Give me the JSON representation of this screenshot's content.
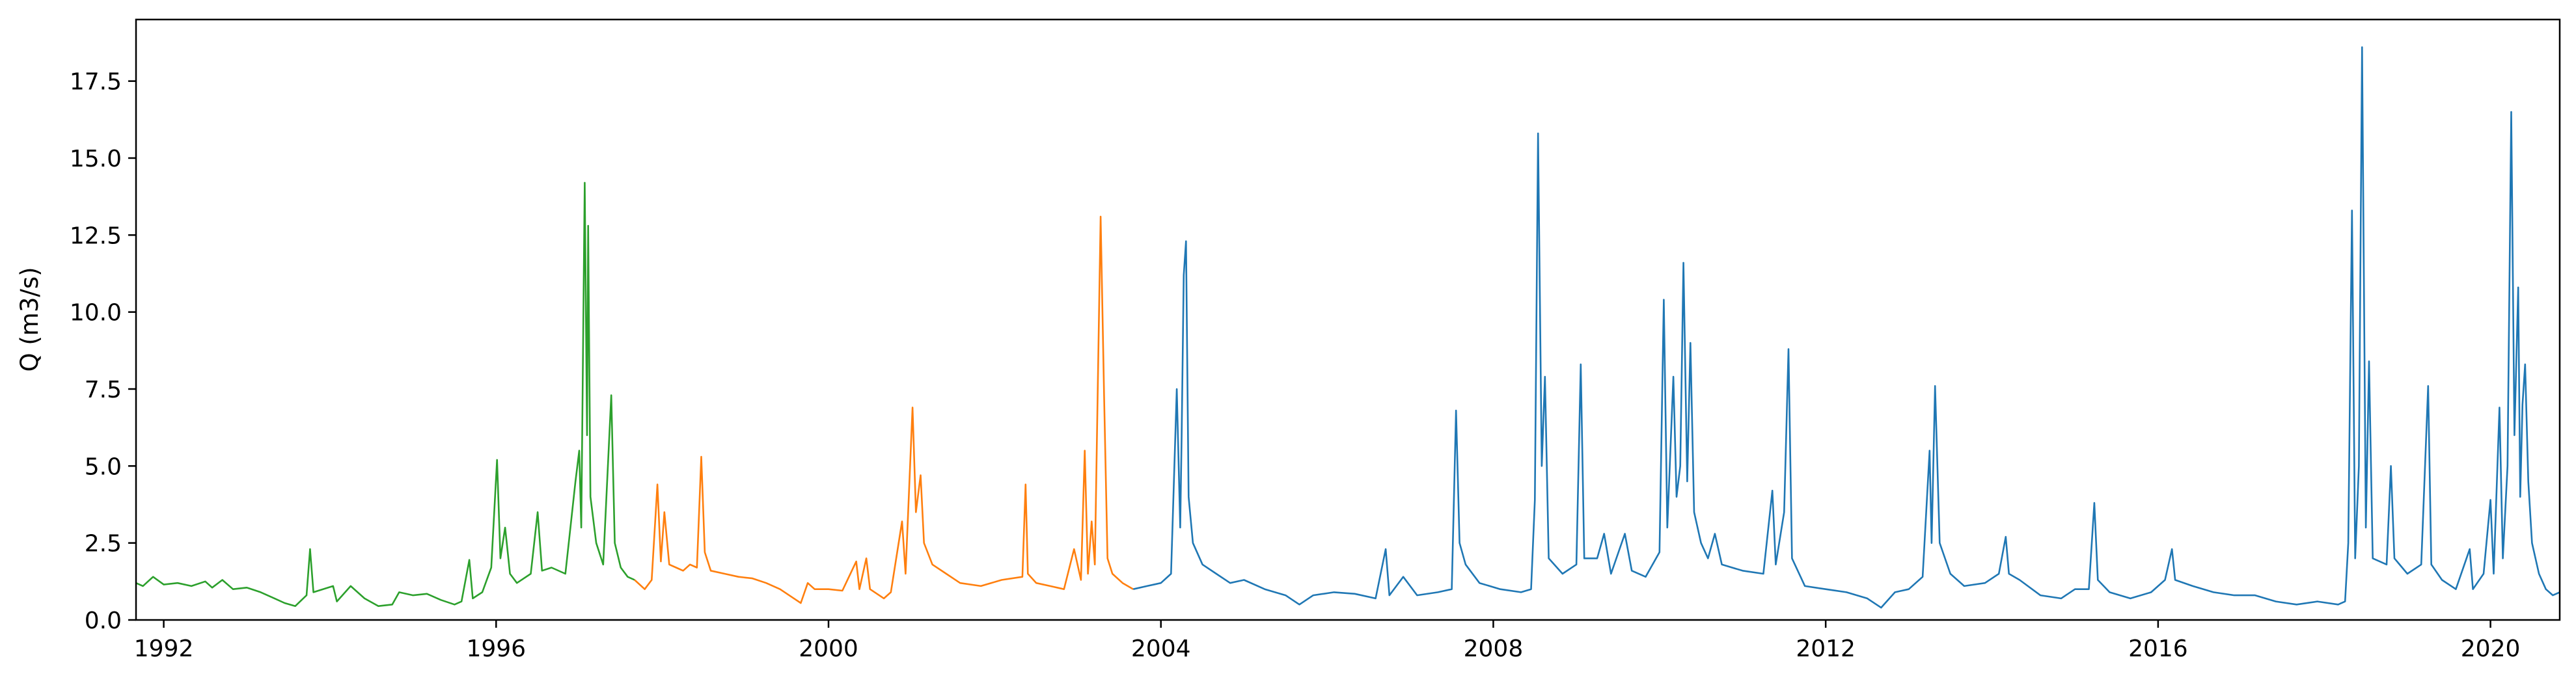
{
  "chart_data": {
    "type": "line",
    "title": "",
    "xlabel": "",
    "ylabel": "Q (m3/s)",
    "xlim": [
      "1991-09-01",
      "2020-11-01"
    ],
    "ylim": [
      0,
      19.5
    ],
    "x_ticks": [
      "1992",
      "1996",
      "2000",
      "2004",
      "2008",
      "2012",
      "2016",
      "2020"
    ],
    "y_ticks": [
      "0.0",
      "2.5",
      "5.0",
      "7.5",
      "10.0",
      "12.5",
      "15.0",
      "17.5"
    ],
    "grid": false,
    "legend": "none",
    "series": [
      {
        "color": "#2ca02c",
        "points": [
          [
            "1991-09-01",
            1.2
          ],
          [
            "1991-10-01",
            1.1
          ],
          [
            "1991-11-15",
            1.4
          ],
          [
            "1992-01-01",
            1.15
          ],
          [
            "1992-03-01",
            1.2
          ],
          [
            "1992-05-01",
            1.1
          ],
          [
            "1992-07-01",
            1.25
          ],
          [
            "1992-08-01",
            1.05
          ],
          [
            "1992-09-15",
            1.3
          ],
          [
            "1992-11-01",
            1.0
          ],
          [
            "1993-01-01",
            1.05
          ],
          [
            "1993-03-01",
            0.9
          ],
          [
            "1993-05-01",
            0.7
          ],
          [
            "1993-06-15",
            0.55
          ],
          [
            "1993-08-01",
            0.45
          ],
          [
            "1993-09-20",
            0.8
          ],
          [
            "1993-10-05",
            2.3
          ],
          [
            "1993-10-20",
            0.9
          ],
          [
            "1993-12-01",
            1.0
          ],
          [
            "1994-01-15",
            1.1
          ],
          [
            "1994-02-01",
            0.6
          ],
          [
            "1994-03-01",
            0.85
          ],
          [
            "1994-04-01",
            1.1
          ],
          [
            "1994-06-01",
            0.7
          ],
          [
            "1994-08-01",
            0.45
          ],
          [
            "1994-10-01",
            0.5
          ],
          [
            "1994-11-01",
            0.9
          ],
          [
            "1995-01-01",
            0.8
          ],
          [
            "1995-03-01",
            0.85
          ],
          [
            "1995-05-01",
            0.65
          ],
          [
            "1995-07-01",
            0.5
          ],
          [
            "1995-08-01",
            0.6
          ],
          [
            "1995-09-05",
            1.95
          ],
          [
            "1995-09-20",
            0.7
          ],
          [
            "1995-11-01",
            0.9
          ],
          [
            "1995-12-10",
            1.7
          ],
          [
            "1996-01-05",
            5.2
          ],
          [
            "1996-01-20",
            2.0
          ],
          [
            "1996-02-10",
            3.0
          ],
          [
            "1996-03-01",
            1.5
          ],
          [
            "1996-04-01",
            1.2
          ],
          [
            "1996-06-01",
            1.5
          ],
          [
            "1996-07-01",
            3.5
          ],
          [
            "1996-07-20",
            1.6
          ],
          [
            "1996-09-01",
            1.7
          ],
          [
            "1996-11-01",
            1.5
          ],
          [
            "1996-12-15",
            4.5
          ],
          [
            "1997-01-01",
            5.5
          ],
          [
            "1997-01-10",
            3.0
          ],
          [
            "1997-01-25",
            14.2
          ],
          [
            "1997-02-05",
            6.0
          ],
          [
            "1997-02-10",
            12.8
          ],
          [
            "1997-02-20",
            4.0
          ],
          [
            "1997-03-15",
            2.5
          ],
          [
            "1997-04-15",
            1.8
          ],
          [
            "1997-05-20",
            7.3
          ],
          [
            "1997-06-05",
            2.5
          ],
          [
            "1997-07-01",
            1.7
          ],
          [
            "1997-08-01",
            1.4
          ],
          [
            "1997-09-01",
            1.3
          ]
        ]
      },
      {
        "color": "#ff7f0e",
        "points": [
          [
            "1997-09-01",
            1.3
          ],
          [
            "1997-10-15",
            1.0
          ],
          [
            "1997-11-15",
            1.3
          ],
          [
            "1997-12-10",
            4.4
          ],
          [
            "1997-12-25",
            1.9
          ],
          [
            "1998-01-10",
            3.5
          ],
          [
            "1998-02-01",
            1.8
          ],
          [
            "1998-03-01",
            1.7
          ],
          [
            "1998-04-01",
            1.6
          ],
          [
            "1998-05-01",
            1.8
          ],
          [
            "1998-06-01",
            1.7
          ],
          [
            "1998-06-20",
            5.3
          ],
          [
            "1998-07-05",
            2.2
          ],
          [
            "1998-08-01",
            1.6
          ],
          [
            "1998-10-01",
            1.5
          ],
          [
            "1998-12-01",
            1.4
          ],
          [
            "1999-02-01",
            1.35
          ],
          [
            "1999-04-01",
            1.2
          ],
          [
            "1999-06-01",
            1.0
          ],
          [
            "1999-08-01",
            0.7
          ],
          [
            "1999-09-01",
            0.55
          ],
          [
            "1999-10-01",
            1.2
          ],
          [
            "1999-11-01",
            1.0
          ],
          [
            "2000-01-01",
            1.0
          ],
          [
            "2000-03-01",
            0.95
          ],
          [
            "2000-05-01",
            1.9
          ],
          [
            "2000-05-15",
            1.0
          ],
          [
            "2000-06-15",
            2.0
          ],
          [
            "2000-07-01",
            1.0
          ],
          [
            "2000-09-01",
            0.7
          ],
          [
            "2000-10-01",
            0.9
          ],
          [
            "2000-11-20",
            3.2
          ],
          [
            "2000-12-05",
            1.5
          ],
          [
            "2001-01-05",
            6.9
          ],
          [
            "2001-01-20",
            3.5
          ],
          [
            "2001-02-10",
            4.7
          ],
          [
            "2001-02-25",
            2.5
          ],
          [
            "2001-04-01",
            1.8
          ],
          [
            "2001-06-01",
            1.5
          ],
          [
            "2001-08-01",
            1.2
          ],
          [
            "2001-11-01",
            1.1
          ],
          [
            "2002-02-01",
            1.3
          ],
          [
            "2002-05-01",
            1.4
          ],
          [
            "2002-05-15",
            4.4
          ],
          [
            "2002-05-25",
            1.5
          ],
          [
            "2002-07-01",
            1.2
          ],
          [
            "2002-09-01",
            1.1
          ],
          [
            "2002-11-01",
            1.0
          ],
          [
            "2002-12-15",
            2.3
          ],
          [
            "2003-01-15",
            1.3
          ],
          [
            "2003-02-01",
            5.5
          ],
          [
            "2003-02-15",
            1.5
          ],
          [
            "2003-03-01",
            3.2
          ],
          [
            "2003-03-15",
            1.8
          ],
          [
            "2003-04-10",
            13.1
          ],
          [
            "2003-04-25",
            7.3
          ],
          [
            "2003-05-10",
            2.0
          ],
          [
            "2003-06-01",
            1.5
          ],
          [
            "2003-07-15",
            1.2
          ],
          [
            "2003-09-01",
            1.0
          ]
        ]
      },
      {
        "color": "#1f77b4",
        "points": [
          [
            "2003-09-01",
            1.0
          ],
          [
            "2003-11-01",
            1.1
          ],
          [
            "2004-01-01",
            1.2
          ],
          [
            "2004-02-15",
            1.5
          ],
          [
            "2004-03-10",
            7.5
          ],
          [
            "2004-03-25",
            3.0
          ],
          [
            "2004-04-01",
            6.0
          ],
          [
            "2004-04-10",
            11.2
          ],
          [
            "2004-04-20",
            12.3
          ],
          [
            "2004-05-01",
            4.0
          ],
          [
            "2004-05-20",
            2.5
          ],
          [
            "2004-07-01",
            1.8
          ],
          [
            "2004-09-01",
            1.5
          ],
          [
            "2004-11-01",
            1.2
          ],
          [
            "2005-01-01",
            1.3
          ],
          [
            "2005-04-01",
            1.0
          ],
          [
            "2005-07-01",
            0.8
          ],
          [
            "2005-09-01",
            0.5
          ],
          [
            "2005-11-01",
            0.8
          ],
          [
            "2006-02-01",
            0.9
          ],
          [
            "2006-05-01",
            0.85
          ],
          [
            "2006-08-01",
            0.7
          ],
          [
            "2006-09-15",
            2.3
          ],
          [
            "2006-10-01",
            0.8
          ],
          [
            "2006-12-01",
            1.4
          ],
          [
            "2007-02-01",
            0.8
          ],
          [
            "2007-05-01",
            0.9
          ],
          [
            "2007-07-01",
            1.0
          ],
          [
            "2007-07-20",
            6.8
          ],
          [
            "2007-08-05",
            2.5
          ],
          [
            "2007-09-01",
            1.8
          ],
          [
            "2007-11-01",
            1.2
          ],
          [
            "2008-02-01",
            1.0
          ],
          [
            "2008-05-01",
            0.9
          ],
          [
            "2008-06-15",
            1.0
          ],
          [
            "2008-07-01",
            3.9
          ],
          [
            "2008-07-15",
            15.8
          ],
          [
            "2008-08-01",
            5.0
          ],
          [
            "2008-08-15",
            7.9
          ],
          [
            "2008-09-01",
            2.0
          ],
          [
            "2008-11-01",
            1.5
          ],
          [
            "2009-01-01",
            1.8
          ],
          [
            "2009-01-20",
            8.3
          ],
          [
            "2009-02-05",
            2.0
          ],
          [
            "2009-04-01",
            2.0
          ],
          [
            "2009-05-01",
            2.8
          ],
          [
            "2009-06-01",
            1.5
          ],
          [
            "2009-08-01",
            2.8
          ],
          [
            "2009-09-01",
            1.6
          ],
          [
            "2009-11-01",
            1.4
          ],
          [
            "2010-01-01",
            2.2
          ],
          [
            "2010-01-20",
            10.4
          ],
          [
            "2010-02-05",
            3.0
          ],
          [
            "2010-03-01",
            7.9
          ],
          [
            "2010-03-15",
            4.0
          ],
          [
            "2010-04-01",
            5.0
          ],
          [
            "2010-04-15",
            11.6
          ],
          [
            "2010-05-01",
            4.5
          ],
          [
            "2010-05-15",
            9.0
          ],
          [
            "2010-06-01",
            3.5
          ],
          [
            "2010-07-01",
            2.5
          ],
          [
            "2010-08-01",
            2.0
          ],
          [
            "2010-09-01",
            2.8
          ],
          [
            "2010-10-01",
            1.8
          ],
          [
            "2011-01-01",
            1.6
          ],
          [
            "2011-04-01",
            1.5
          ],
          [
            "2011-05-10",
            4.2
          ],
          [
            "2011-05-25",
            1.8
          ],
          [
            "2011-07-01",
            3.5
          ],
          [
            "2011-07-20",
            8.8
          ],
          [
            "2011-08-05",
            2.0
          ],
          [
            "2011-10-01",
            1.1
          ],
          [
            "2012-01-01",
            1.0
          ],
          [
            "2012-04-01",
            0.9
          ],
          [
            "2012-07-01",
            0.7
          ],
          [
            "2012-09-01",
            0.4
          ],
          [
            "2012-11-01",
            0.9
          ],
          [
            "2013-01-01",
            1.0
          ],
          [
            "2013-03-01",
            1.4
          ],
          [
            "2013-04-01",
            5.5
          ],
          [
            "2013-04-10",
            2.5
          ],
          [
            "2013-04-25",
            7.6
          ],
          [
            "2013-05-15",
            2.5
          ],
          [
            "2013-07-01",
            1.5
          ],
          [
            "2013-09-01",
            1.1
          ],
          [
            "2013-12-01",
            1.2
          ],
          [
            "2014-02-01",
            1.5
          ],
          [
            "2014-03-01",
            2.7
          ],
          [
            "2014-03-15",
            1.5
          ],
          [
            "2014-05-01",
            1.3
          ],
          [
            "2014-08-01",
            0.8
          ],
          [
            "2014-11-01",
            0.7
          ],
          [
            "2015-01-01",
            1.0
          ],
          [
            "2015-03-01",
            1.0
          ],
          [
            "2015-03-25",
            3.8
          ],
          [
            "2015-04-10",
            1.3
          ],
          [
            "2015-06-01",
            0.9
          ],
          [
            "2015-09-01",
            0.7
          ],
          [
            "2015-12-01",
            0.9
          ],
          [
            "2016-02-01",
            1.3
          ],
          [
            "2016-03-01",
            2.3
          ],
          [
            "2016-03-15",
            1.3
          ],
          [
            "2016-06-01",
            1.1
          ],
          [
            "2016-09-01",
            0.9
          ],
          [
            "2016-12-01",
            0.8
          ],
          [
            "2017-03-01",
            0.8
          ],
          [
            "2017-06-01",
            0.6
          ],
          [
            "2017-09-01",
            0.5
          ],
          [
            "2017-12-01",
            0.6
          ],
          [
            "2018-03-01",
            0.5
          ],
          [
            "2018-04-01",
            0.6
          ],
          [
            "2018-04-15",
            2.5
          ],
          [
            "2018-05-01",
            13.3
          ],
          [
            "2018-05-15",
            2.0
          ],
          [
            "2018-06-01",
            5.0
          ],
          [
            "2018-06-15",
            18.6
          ],
          [
            "2018-07-01",
            3.0
          ],
          [
            "2018-07-15",
            8.4
          ],
          [
            "2018-08-01",
            2.0
          ],
          [
            "2018-10-01",
            1.8
          ],
          [
            "2018-10-20",
            5.0
          ],
          [
            "2018-11-05",
            2.0
          ],
          [
            "2019-01-01",
            1.5
          ],
          [
            "2019-03-01",
            1.8
          ],
          [
            "2019-04-01",
            7.6
          ],
          [
            "2019-04-15",
            1.8
          ],
          [
            "2019-06-01",
            1.3
          ],
          [
            "2019-08-01",
            1.0
          ],
          [
            "2019-10-01",
            2.3
          ],
          [
            "2019-10-15",
            1.0
          ],
          [
            "2019-12-01",
            1.5
          ],
          [
            "2020-01-01",
            3.9
          ],
          [
            "2020-01-15",
            1.5
          ],
          [
            "2020-02-10",
            6.9
          ],
          [
            "2020-02-25",
            2.0
          ],
          [
            "2020-03-15",
            5.0
          ],
          [
            "2020-04-01",
            16.5
          ],
          [
            "2020-04-15",
            6.0
          ],
          [
            "2020-05-01",
            10.8
          ],
          [
            "2020-05-10",
            4.0
          ],
          [
            "2020-05-20",
            7.0
          ],
          [
            "2020-06-01",
            8.3
          ],
          [
            "2020-06-15",
            4.5
          ],
          [
            "2020-07-01",
            2.5
          ],
          [
            "2020-08-01",
            1.5
          ],
          [
            "2020-09-01",
            1.0
          ],
          [
            "2020-10-01",
            0.8
          ],
          [
            "2020-11-01",
            0.9
          ]
        ]
      }
    ]
  }
}
